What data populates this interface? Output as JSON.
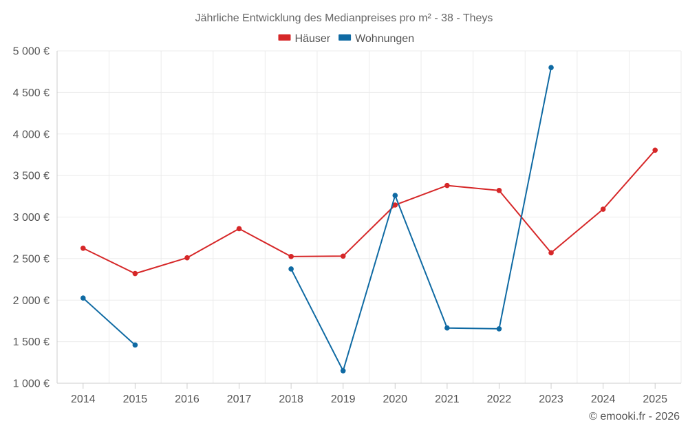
{
  "chart_data": {
    "type": "line",
    "title": "Jährliche Entwicklung des Medianpreises pro m² - 38 - Theys",
    "categories": [
      "2014",
      "2015",
      "2016",
      "2017",
      "2018",
      "2019",
      "2020",
      "2021",
      "2022",
      "2023",
      "2024",
      "2025"
    ],
    "series": [
      {
        "name": "Häuser",
        "color": "#d62728",
        "values": [
          2625,
          2320,
          2510,
          2860,
          2525,
          2530,
          3145,
          3380,
          3320,
          2570,
          3095,
          3805
        ]
      },
      {
        "name": "Wohnungen",
        "color": "#0f6aa3",
        "values": [
          2025,
          1460,
          null,
          null,
          2375,
          1150,
          3260,
          1665,
          1655,
          4800,
          null,
          null
        ]
      }
    ],
    "ylim": [
      1000,
      5000
    ],
    "yticks": [
      1000,
      1500,
      2000,
      2500,
      3000,
      3500,
      4000,
      4500,
      5000
    ],
    "ytick_labels": [
      "1 000 €",
      "1 500 €",
      "2 000 €",
      "2 500 €",
      "3 000 €",
      "3 500 €",
      "4 000 €",
      "4 500 €",
      "5 000 €"
    ],
    "xlabel": "",
    "ylabel": "",
    "grid": true,
    "legend_position": "top-center"
  },
  "footer": {
    "credit": "© emooki.fr - 2026"
  }
}
